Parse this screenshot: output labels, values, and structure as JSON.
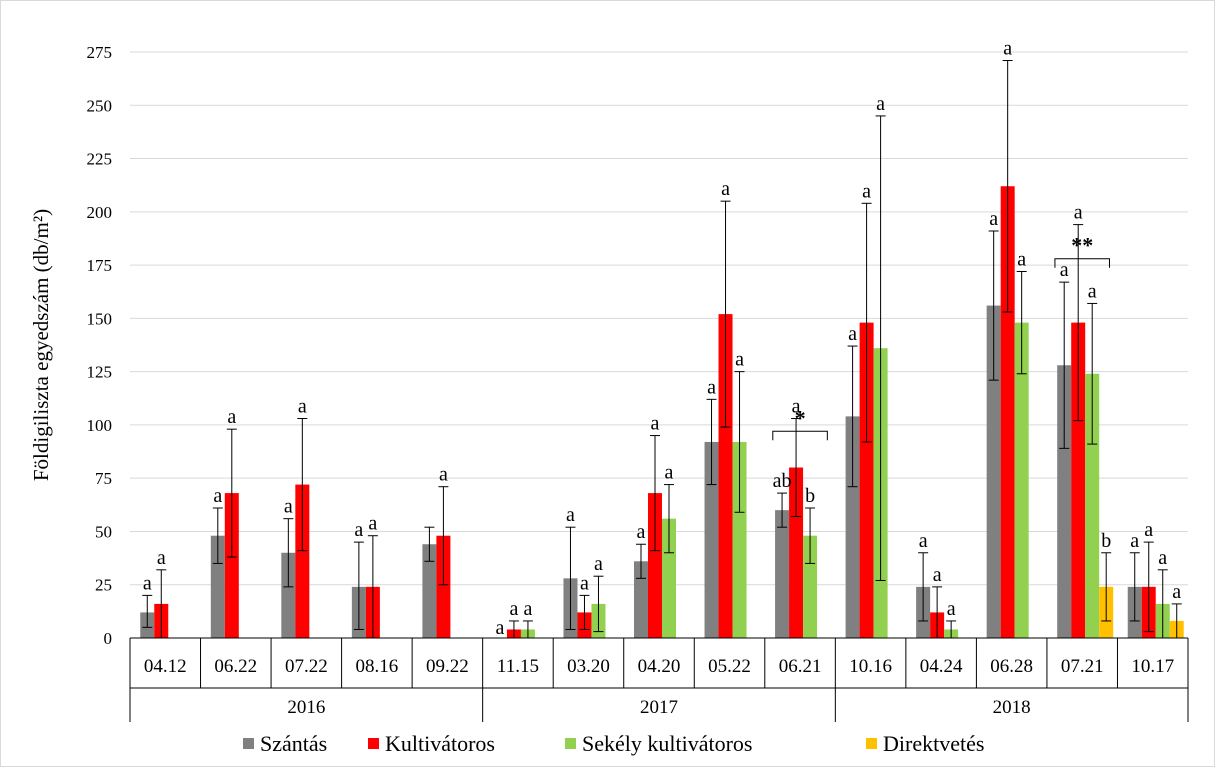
{
  "chart_data": {
    "type": "bar",
    "ylabel": "Földigiliszta egyedszám (db/m²)",
    "ylim": [
      0,
      275
    ],
    "yticks": [
      "0",
      "25",
      "50",
      "75",
      "100",
      "125",
      "150",
      "175",
      "200",
      "225",
      "250",
      "275"
    ],
    "grid": true,
    "legend_position": "bottom",
    "categories": [
      "04.12",
      "06.22",
      "07.22",
      "08.16",
      "09.22",
      "11.15",
      "03.20",
      "04.20",
      "05.22",
      "06.21",
      "10.16",
      "04.24",
      "06.28",
      "07.21",
      "10.17"
    ],
    "groups": [
      {
        "label": "2016",
        "from": 0,
        "to": 4
      },
      {
        "label": "2017",
        "from": 5,
        "to": 9
      },
      {
        "label": "2018",
        "from": 10,
        "to": 14
      }
    ],
    "series": [
      {
        "name": "Szántás",
        "color": "#808080",
        "values": [
          12,
          48,
          40,
          24,
          44,
          0,
          28,
          36,
          92,
          60,
          104,
          24,
          156,
          128,
          24
        ],
        "error_low": [
          5,
          35,
          24,
          4,
          36,
          null,
          4,
          28,
          72,
          52,
          71,
          8,
          121,
          89,
          8
        ],
        "error_high": [
          20,
          61,
          56,
          45,
          52,
          null,
          52,
          44,
          112,
          68,
          137,
          40,
          191,
          167,
          40
        ],
        "letters": [
          "a",
          "a",
          "a",
          "a",
          "",
          "",
          "a",
          "a",
          "a",
          "ab",
          "a",
          "a",
          "a",
          "a",
          "a"
        ]
      },
      {
        "name": "Kultivátoros",
        "color": "#ff0000",
        "values": [
          16,
          68,
          72,
          24,
          48,
          4,
          12,
          68,
          152,
          80,
          148,
          12,
          212,
          148,
          24
        ],
        "error_low": [
          0,
          38,
          41,
          0,
          25,
          0,
          4,
          41,
          99,
          57,
          92,
          0,
          153,
          102,
          3
        ],
        "error_high": [
          32,
          98,
          103,
          48,
          71,
          8,
          20,
          95,
          205,
          103,
          204,
          24,
          271,
          194,
          45
        ],
        "letters": [
          "a",
          "a",
          "a",
          "a",
          "a",
          "a",
          "a",
          "a",
          "a",
          "a",
          "a",
          "a",
          "a",
          "a",
          "a"
        ]
      },
      {
        "name": "Sekély kultivátoros",
        "color": "#92d050",
        "values": [
          null,
          null,
          null,
          null,
          null,
          4,
          16,
          56,
          92,
          48,
          136,
          4,
          148,
          124,
          16
        ],
        "error_low": [
          null,
          null,
          null,
          null,
          null,
          0,
          3,
          40,
          59,
          35,
          27,
          0,
          124,
          91,
          0
        ],
        "error_high": [
          null,
          null,
          null,
          null,
          null,
          8,
          29,
          72,
          125,
          61,
          245,
          8,
          172,
          157,
          32
        ],
        "letters": [
          "",
          "",
          "",
          "",
          "",
          "a",
          "a",
          "a",
          "a",
          "b",
          "a",
          "a",
          "a",
          "a",
          "a"
        ]
      },
      {
        "name": "Direktvetés",
        "color": "#ffc000",
        "values": [
          null,
          null,
          null,
          null,
          null,
          null,
          null,
          null,
          null,
          null,
          null,
          null,
          null,
          24,
          8
        ],
        "error_low": [
          null,
          null,
          null,
          null,
          null,
          null,
          null,
          null,
          null,
          null,
          null,
          null,
          null,
          8,
          0
        ],
        "error_high": [
          null,
          null,
          null,
          null,
          null,
          null,
          null,
          null,
          null,
          null,
          null,
          null,
          null,
          40,
          16
        ],
        "letters": [
          "",
          "",
          "",
          "",
          "",
          "",
          "",
          "",
          "",
          "",
          "",
          "",
          "",
          "b",
          "a"
        ]
      }
    ],
    "extra_letters": [
      {
        "category": 5,
        "text": "a"
      }
    ],
    "significance_brackets": [
      {
        "category": 9,
        "text": "*",
        "y": 97
      },
      {
        "category": 13,
        "text": "**",
        "y": 178
      }
    ]
  }
}
